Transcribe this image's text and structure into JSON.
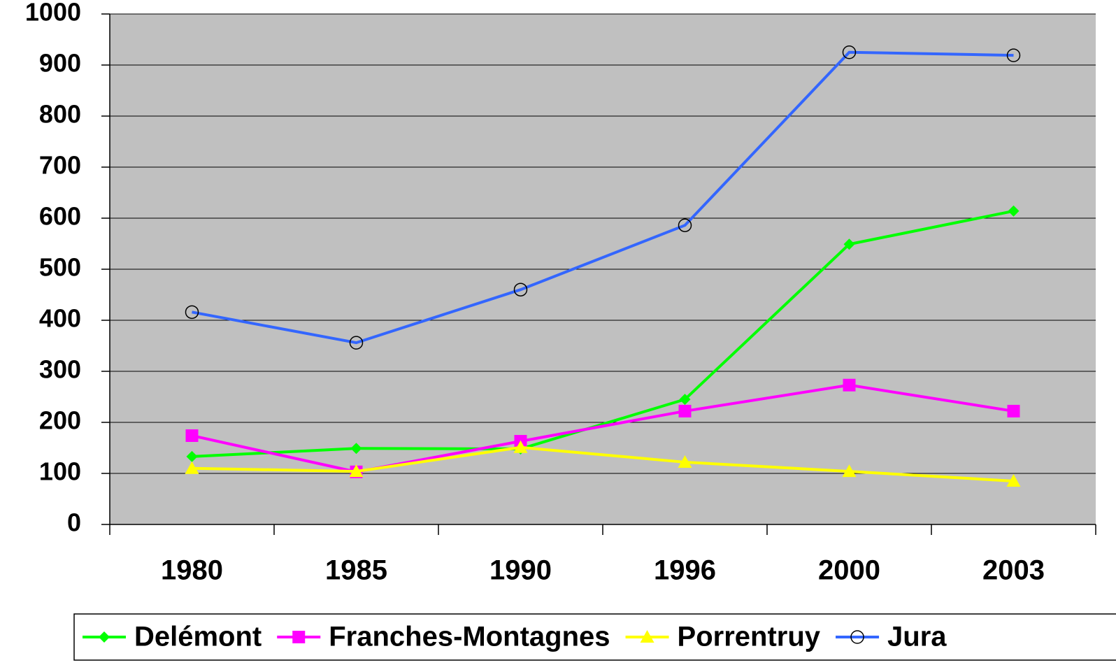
{
  "chart_data": {
    "type": "line",
    "categories": [
      "1980",
      "1985",
      "1990",
      "1996",
      "2000",
      "2003"
    ],
    "series": [
      {
        "name": "Delémont",
        "color": "#00ff00",
        "marker": "diamond",
        "values": [
          133,
          149,
          148,
          245,
          549,
          614
        ]
      },
      {
        "name": "Franches-Montagnes",
        "color": "#ff00ff",
        "marker": "square",
        "values": [
          174,
          103,
          163,
          222,
          273,
          222
        ]
      },
      {
        "name": "Porrentruy",
        "color": "#ffff00",
        "marker": "triangle",
        "values": [
          110,
          104,
          151,
          122,
          104,
          85
        ]
      },
      {
        "name": "Jura",
        "color": "#3366ff",
        "marker": "circle",
        "values": [
          416,
          356,
          460,
          586,
          925,
          919
        ]
      }
    ],
    "ylim": [
      0,
      1000
    ],
    "yticks": [
      0,
      100,
      200,
      300,
      400,
      500,
      600,
      700,
      800,
      900,
      1000
    ],
    "grid": true,
    "legend": "bottom",
    "plot_background": "#c0c0c0"
  }
}
